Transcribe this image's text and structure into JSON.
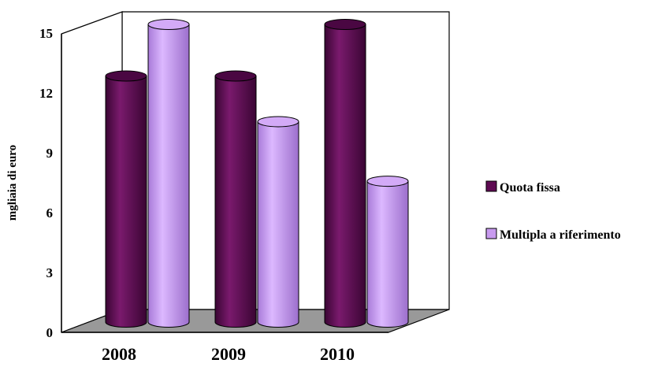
{
  "chart_data": {
    "type": "bar",
    "style": "3d-cylinder",
    "categories": [
      "2008",
      "2009",
      "2010"
    ],
    "series": [
      {
        "name": "Quota fissa",
        "values": [
          12.4,
          12.4,
          15.0
        ],
        "color": "#5e0a52"
      },
      {
        "name": "Multipla a riferimento",
        "values": [
          15.0,
          10.1,
          7.1
        ],
        "color": "#c89aef"
      }
    ],
    "ylabel": "mgliaia di euro",
    "yticks": [
      "0",
      "3",
      "6",
      "9",
      "12",
      "15"
    ],
    "ylim": [
      0,
      15
    ],
    "legend_position": "right",
    "floor_color": "#999999"
  }
}
